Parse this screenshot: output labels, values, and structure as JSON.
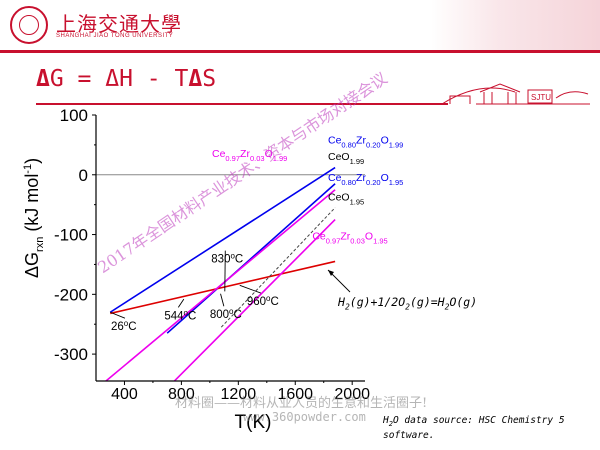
{
  "header": {
    "university_cn": "上海交通大學",
    "university_en": "SHANGHAI JIAO TONG UNIVERSITY",
    "sjtu_mark": "SJTU"
  },
  "slide": {
    "title_delta1": "Δ",
    "title_mid1": "G = ",
    "title_delta2": "Δ",
    "title_mid2": "H - T",
    "title_delta3": "Δ",
    "title_end": "S"
  },
  "watermarks": {
    "diagonal": "2017年全国材料产业技术、资本与市场对接会议",
    "line1": "材料圈——材料从业人员的生意和生活圈子!",
    "line2": "www.360powder.com"
  },
  "reaction": {
    "text": "H2(g)+1/2O2(g)=H2O(g)"
  },
  "source_note": "H2O data source: HSC Chemistry 5 software.",
  "colors": {
    "brand_red": "#c8102e",
    "blue": "#0000ee",
    "red": "#dd0000",
    "magenta": "#ee00ee",
    "black": "#000000"
  },
  "chart_data": {
    "type": "line",
    "xlabel": "T(K)",
    "ylabel": "ΔG_rxn (kJ mol^-1)",
    "xlim": [
      270,
      1900
    ],
    "ylim": [
      -345,
      100
    ],
    "x_ticks": [
      400,
      800,
      1200,
      1600,
      2000
    ],
    "y_ticks": [
      100,
      0,
      -100,
      -200,
      -300
    ],
    "grid": false,
    "series": [
      {
        "name": "Ce0.80Zr0.20O1.99 / CeO1.99",
        "color": "#0000ee",
        "style": "solid",
        "x": [
          300,
          1880
        ],
        "y": [
          -230,
          12
        ]
      },
      {
        "name": "Ce0.80Zr0.20O1.95 / CeO1.95",
        "color": "#0000ee",
        "style": "solid",
        "x": [
          700,
          1880
        ],
        "y": [
          -265,
          -15
        ]
      },
      {
        "name": "H2(g)+1/2O2(g)=H2O(g)",
        "color": "#dd0000",
        "style": "solid",
        "x": [
          300,
          1880
        ],
        "y": [
          -232,
          -145
        ]
      },
      {
        "name": "Ce0.97Zr0.03O1.99",
        "color": "#ee00ee",
        "style": "solid",
        "x": [
          270,
          1880
        ],
        "y": [
          -345,
          -25
        ]
      },
      {
        "name": "Ce0.97Zr0.03O1.95",
        "color": "#ee00ee",
        "style": "solid",
        "x": [
          270,
          1880
        ],
        "y": [
          -460,
          -75
        ]
      },
      {
        "name": "",
        "color": "#444444",
        "style": "dashed",
        "x": [
          1080,
          1880
        ],
        "y": [
          -255,
          -55
        ]
      }
    ],
    "annotations": [
      {
        "text": "26°C",
        "x": 305,
        "y": -260,
        "arrow_to": [
          300,
          -230
        ]
      },
      {
        "text": "544°C",
        "x": 680,
        "y": -242,
        "arrow_to": [
          817,
          -208
        ]
      },
      {
        "text": "800°C",
        "x": 1000,
        "y": -240,
        "arrow_to": [
          1075,
          -199
        ]
      },
      {
        "text": "830°C",
        "x": 1010,
        "y": -147,
        "arrow_to": [
          1105,
          -195
        ]
      },
      {
        "text": "960°C",
        "x": 1260,
        "y": -218,
        "arrow_to": [
          1210,
          -185
        ]
      }
    ],
    "series_labels": [
      {
        "parts": [
          [
            "Ce",
            ""
          ],
          [
            "0.97",
            "sub"
          ],
          [
            "Zr",
            ""
          ],
          [
            "0.03",
            "sub"
          ],
          [
            "O",
            ""
          ],
          [
            "1.99",
            "sub"
          ]
        ],
        "color": "#ee00ee",
        "x": 1015,
        "y": 30
      },
      {
        "parts": [
          [
            "Ce",
            ""
          ],
          [
            "0.80",
            "sub"
          ],
          [
            "Zr",
            ""
          ],
          [
            "0.20",
            "sub"
          ],
          [
            "O",
            ""
          ],
          [
            "1.99",
            "sub"
          ]
        ],
        "color": "#0000ee",
        "x": 1830,
        "y": 52
      },
      {
        "parts": [
          [
            "CeO",
            ""
          ],
          [
            "1.99",
            "sub"
          ]
        ],
        "color": "#000000",
        "x": 1830,
        "y": 25
      },
      {
        "parts": [
          [
            "Ce",
            ""
          ],
          [
            "0.80",
            "sub"
          ],
          [
            "Zr",
            ""
          ],
          [
            "0.20",
            "sub"
          ],
          [
            "O",
            ""
          ],
          [
            "1.95",
            "sub"
          ]
        ],
        "color": "#0000ee",
        "x": 1830,
        "y": -10
      },
      {
        "parts": [
          [
            "CeO",
            ""
          ],
          [
            "1.95",
            "sub"
          ]
        ],
        "color": "#000000",
        "x": 1830,
        "y": -43
      },
      {
        "parts": [
          [
            "Ce",
            ""
          ],
          [
            "0.97",
            "sub"
          ],
          [
            "Zr",
            ""
          ],
          [
            "0.03",
            "sub"
          ],
          [
            "O",
            ""
          ],
          [
            "1.95",
            "sub"
          ]
        ],
        "color": "#ee00ee",
        "x": 1720,
        "y": -108
      }
    ]
  }
}
